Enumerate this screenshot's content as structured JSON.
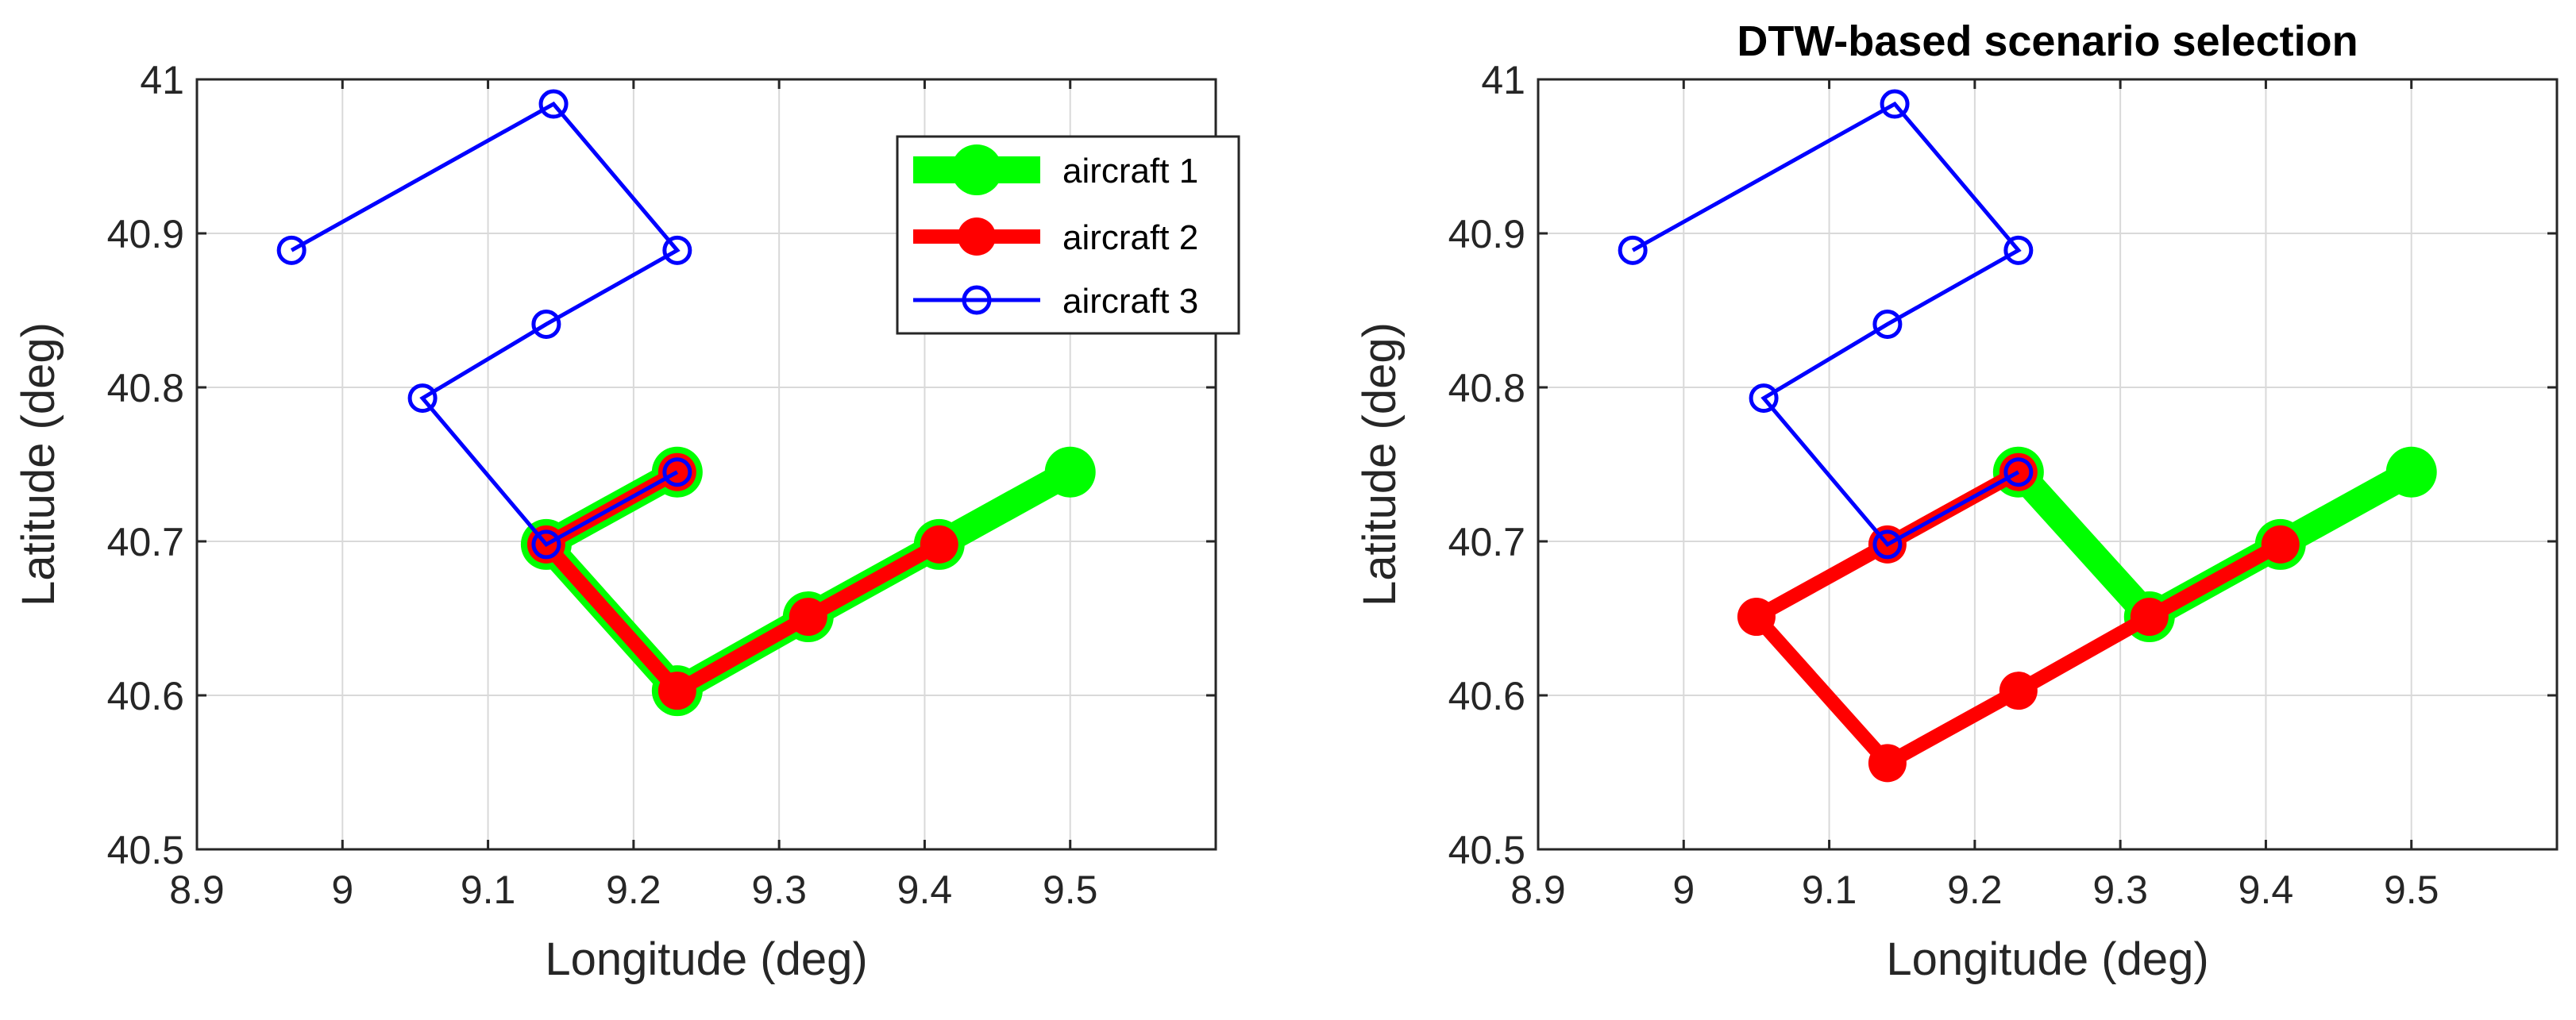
{
  "chart_data": [
    {
      "type": "line",
      "title": "",
      "xlabel": "Longitude (deg)",
      "ylabel": "Latitude (deg)",
      "xlim": [
        8.9,
        9.6
      ],
      "ylim": [
        40.5,
        41.0
      ],
      "xticks": [
        8.9,
        9.0,
        9.1,
        9.2,
        9.3,
        9.4,
        9.5
      ],
      "xtick_labels": [
        "8.9",
        "9",
        "9.1",
        "9.2",
        "9.3",
        "9.4",
        "9.5"
      ],
      "yticks": [
        40.5,
        40.6,
        40.7,
        40.8,
        40.9,
        41.0
      ],
      "ytick_labels": [
        "40.5",
        "40.6",
        "40.7",
        "40.8",
        "40.9",
        "41"
      ],
      "grid": true,
      "legend": "top-right",
      "series": [
        {
          "name": "aircraft 1",
          "color": "#00ff00",
          "marker": "filled-circle",
          "points": [
            [
              9.5,
              40.745
            ],
            [
              9.41,
              40.698
            ],
            [
              9.32,
              40.651
            ],
            [
              9.23,
              40.603
            ],
            [
              9.14,
              40.698
            ],
            [
              9.23,
              40.745
            ]
          ]
        },
        {
          "name": "aircraft 2",
          "color": "#ff0000",
          "marker": "filled-circle",
          "points": [
            [
              9.41,
              40.698
            ],
            [
              9.32,
              40.651
            ],
            [
              9.23,
              40.603
            ],
            [
              9.14,
              40.698
            ],
            [
              9.23,
              40.745
            ]
          ]
        },
        {
          "name": "aircraft 3",
          "color": "#0000ff",
          "marker": "open-circle",
          "points": [
            [
              8.965,
              40.889
            ],
            [
              9.145,
              40.984
            ],
            [
              9.23,
              40.889
            ],
            [
              9.14,
              40.841
            ],
            [
              9.055,
              40.793
            ],
            [
              9.14,
              40.698
            ],
            [
              9.23,
              40.745
            ]
          ]
        }
      ]
    },
    {
      "type": "line",
      "title": "DTW-based scenario selection",
      "xlabel": "Longitude (deg)",
      "ylabel": "Latitude (deg)",
      "xlim": [
        8.9,
        9.6
      ],
      "ylim": [
        40.5,
        41.0
      ],
      "xticks": [
        8.9,
        9.0,
        9.1,
        9.2,
        9.3,
        9.4,
        9.5
      ],
      "xtick_labels": [
        "8.9",
        "9",
        "9.1",
        "9.2",
        "9.3",
        "9.4",
        "9.5"
      ],
      "yticks": [
        40.5,
        40.6,
        40.7,
        40.8,
        40.9,
        41.0
      ],
      "ytick_labels": [
        "40.5",
        "40.6",
        "40.7",
        "40.8",
        "40.9",
        "41"
      ],
      "grid": true,
      "series": [
        {
          "color": "#00ff00",
          "marker": "filled-circle",
          "points": [
            [
              9.5,
              40.745
            ],
            [
              9.41,
              40.698
            ],
            [
              9.32,
              40.651
            ],
            [
              9.23,
              40.745
            ]
          ]
        },
        {
          "color": "#ff0000",
          "marker": "filled-circle",
          "points": [
            [
              9.41,
              40.698
            ],
            [
              9.32,
              40.651
            ],
            [
              9.23,
              40.603
            ],
            [
              9.14,
              40.556
            ],
            [
              9.05,
              40.651
            ],
            [
              9.14,
              40.698
            ],
            [
              9.23,
              40.745
            ]
          ]
        },
        {
          "color": "#0000ff",
          "marker": "open-circle",
          "points": [
            [
              8.965,
              40.889
            ],
            [
              9.145,
              40.984
            ],
            [
              9.23,
              40.889
            ],
            [
              9.14,
              40.841
            ],
            [
              9.055,
              40.793
            ],
            [
              9.14,
              40.698
            ],
            [
              9.23,
              40.745
            ]
          ]
        }
      ]
    }
  ]
}
